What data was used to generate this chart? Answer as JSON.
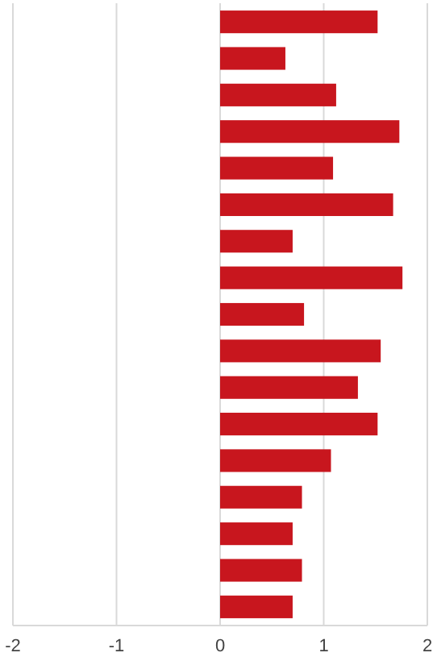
{
  "chart_data": {
    "type": "bar",
    "orientation": "horizontal",
    "categories": [
      null,
      null,
      null,
      null,
      null,
      null,
      null,
      null,
      null,
      null,
      null,
      null,
      null,
      null,
      null,
      null,
      null
    ],
    "values": [
      1.52,
      0.63,
      1.12,
      1.73,
      1.09,
      1.67,
      0.7,
      1.76,
      0.81,
      1.55,
      1.33,
      1.52,
      1.07,
      0.79,
      0.7,
      0.79,
      0.7
    ],
    "color": "#c8161e",
    "xlim": [
      -2,
      2
    ],
    "xticks": [
      -2,
      -1,
      0,
      1,
      2
    ],
    "grid": "x"
  }
}
